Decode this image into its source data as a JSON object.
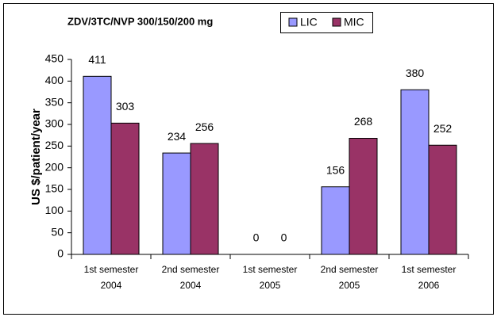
{
  "chart_data": {
    "type": "bar",
    "title": "ZDV/3TC/NVP 300/150/200 mg",
    "y_label": "US $/patient/year",
    "categories": [
      [
        "1st semester",
        "2004"
      ],
      [
        "2nd semester",
        "2004"
      ],
      [
        "1st semester",
        "2005"
      ],
      [
        "2nd semester",
        "2005"
      ],
      [
        "1st semester",
        "2006"
      ]
    ],
    "series": [
      {
        "name": "LIC",
        "color": "#9999ff",
        "values": [
          411,
          234,
          0,
          156,
          380
        ]
      },
      {
        "name": "MIC",
        "color": "#993366",
        "values": [
          303,
          256,
          0,
          268,
          252
        ]
      }
    ],
    "ylim": [
      0,
      450
    ],
    "yticks": [
      0,
      50,
      100,
      150,
      200,
      250,
      300,
      350,
      400,
      450
    ],
    "grid": false,
    "legend": "top"
  }
}
